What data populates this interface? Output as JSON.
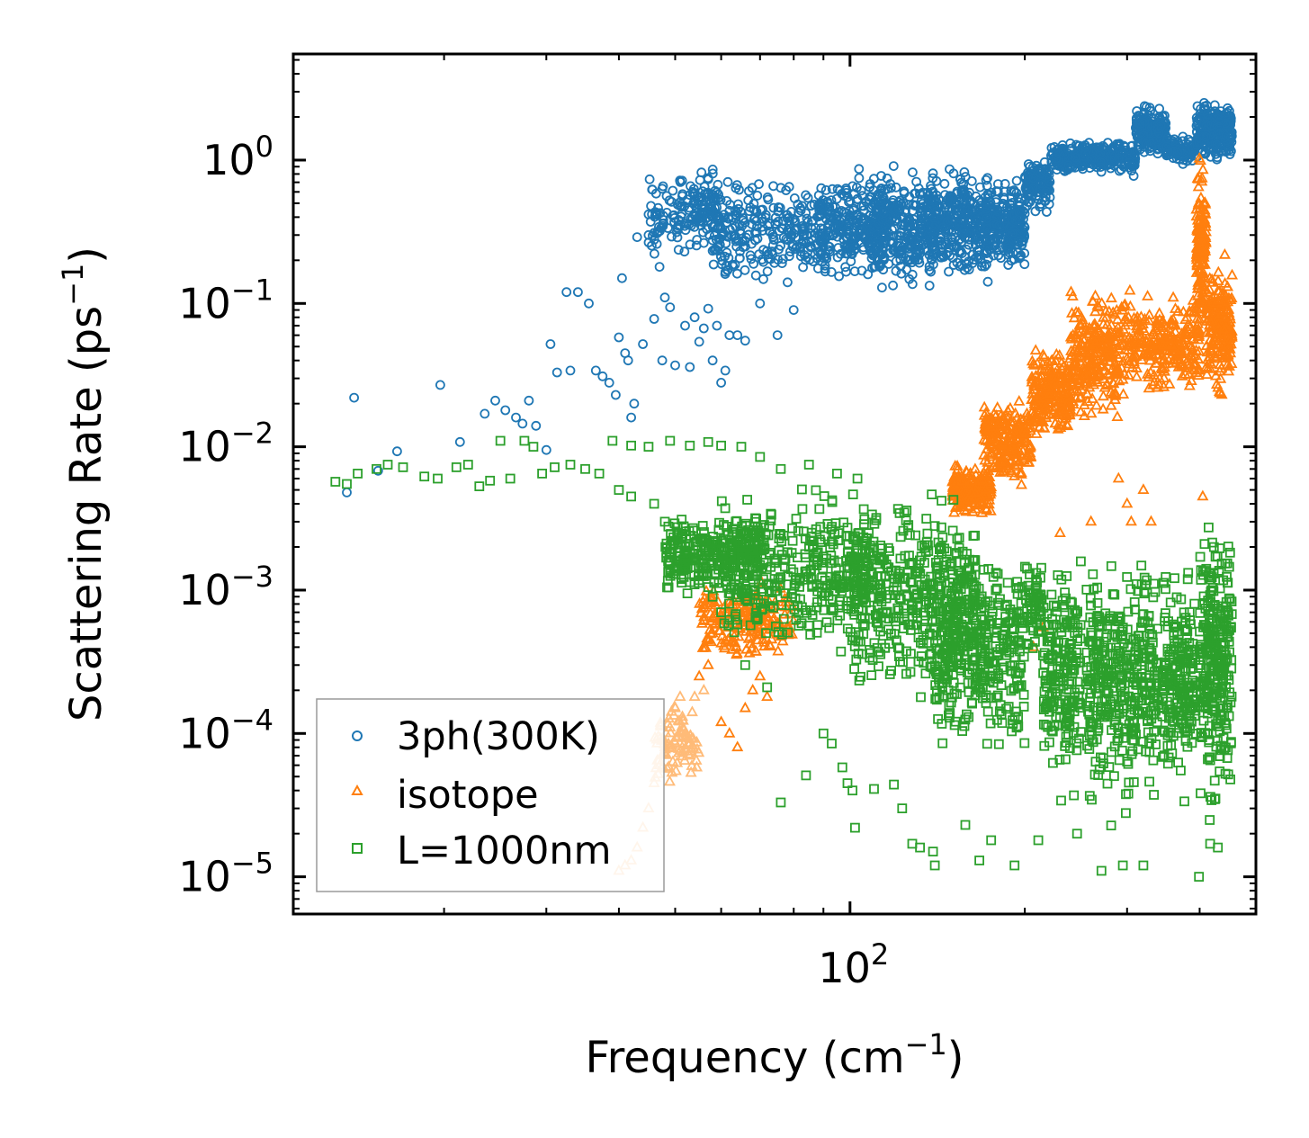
{
  "chart_data": {
    "type": "scatter",
    "xscale": "log",
    "yscale": "log",
    "xlim": [
      11,
      500
    ],
    "ylim": [
      5.5e-06,
      5.5
    ],
    "xlabel": {
      "main": "Frequency (cm",
      "sup": "−1",
      "tail": ")"
    },
    "ylabel": {
      "main": "Scattering Rate (ps",
      "sup": "−1",
      "tail": ")"
    },
    "x_ticks": [
      {
        "value": 100,
        "base": "10",
        "exp": "2"
      }
    ],
    "y_ticks": [
      {
        "value": 1e-05,
        "base": "10",
        "exp": "−5"
      },
      {
        "value": 0.0001,
        "base": "10",
        "exp": "−4"
      },
      {
        "value": 0.001,
        "base": "10",
        "exp": "−3"
      },
      {
        "value": 0.01,
        "base": "10",
        "exp": "−2"
      },
      {
        "value": 0.1,
        "base": "10",
        "exp": "−1"
      },
      {
        "value": 1,
        "base": "10",
        "exp": "0"
      }
    ],
    "legend_position": "lower-left",
    "series": [
      {
        "name": "3ph(300K)",
        "marker": "circle",
        "color": "#1f77b4",
        "points": [
          [
            13.6,
            0.0048
          ],
          [
            14.0,
            0.022
          ],
          [
            15.4,
            0.0068
          ],
          [
            16.6,
            0.0093
          ],
          [
            19.7,
            0.027
          ],
          [
            21.3,
            0.0108
          ],
          [
            23.5,
            0.017
          ],
          [
            24.5,
            0.021
          ],
          [
            25.5,
            0.018
          ],
          [
            26.6,
            0.016
          ],
          [
            27.3,
            0.0145
          ],
          [
            28.0,
            0.021
          ],
          [
            28.8,
            0.014
          ],
          [
            30.0,
            0.0095
          ],
          [
            30.5,
            0.052
          ],
          [
            31.3,
            0.033
          ],
          [
            32.5,
            0.12
          ],
          [
            33.0,
            0.034
          ],
          [
            34.0,
            0.12
          ],
          [
            35.5,
            0.1
          ],
          [
            36.5,
            0.034
          ],
          [
            37.5,
            0.031
          ],
          [
            38.5,
            0.028
          ],
          [
            39.5,
            0.023
          ],
          [
            40.0,
            0.058
          ],
          [
            40.5,
            0.15
          ],
          [
            41.0,
            0.045
          ],
          [
            41.5,
            0.04
          ],
          [
            42.0,
            0.016
          ],
          [
            42.5,
            0.02
          ],
          [
            43.0,
            0.29
          ],
          [
            44.0,
            0.052
          ],
          [
            45.0,
            0.3
          ],
          [
            46.0,
            0.078
          ],
          [
            46.5,
            0.26
          ],
          [
            47.0,
            0.18
          ],
          [
            47.5,
            0.04
          ],
          [
            48.0,
            0.11
          ],
          [
            49.0,
            0.094
          ],
          [
            50.0,
            0.037
          ],
          [
            51.0,
            0.35
          ],
          [
            52.0,
            0.07
          ],
          [
            53.0,
            0.036
          ],
          [
            54.0,
            0.08
          ],
          [
            55.0,
            0.054
          ],
          [
            56.0,
            0.067
          ],
          [
            57.0,
            0.092
          ],
          [
            58.0,
            0.04
          ],
          [
            59.0,
            0.07
          ],
          [
            60.0,
            0.028
          ],
          [
            61.0,
            0.034
          ],
          [
            62.0,
            0.06
          ],
          [
            64.0,
            0.06
          ],
          [
            66.0,
            0.055
          ],
          [
            70.0,
            0.1
          ],
          [
            75.0,
            0.06
          ],
          [
            80.0,
            0.09
          ]
        ],
        "bands": [
          {
            "x": [
              45,
              60
            ],
            "y": [
              0.2,
              0.95
            ],
            "n": 170
          },
          {
            "x": [
              58,
              90
            ],
            "y": [
              0.12,
              0.8
            ],
            "n": 260
          },
          {
            "x": [
              88,
              115
            ],
            "y": [
              0.12,
              0.95
            ],
            "n": 260
          },
          {
            "x": [
              108,
              140
            ],
            "y": [
              0.11,
              1.05
            ],
            "n": 300
          },
          {
            "x": [
              138,
              175
            ],
            "y": [
              0.13,
              1.0
            ],
            "n": 320
          },
          {
            "x": [
              170,
              200
            ],
            "y": [
              0.15,
              0.85
            ],
            "n": 240
          },
          {
            "x": [
              200,
              222
            ],
            "y": [
              0.4,
              1.15
            ],
            "n": 120
          },
          {
            "x": [
              222,
              310
            ],
            "y": [
              0.75,
              1.45
            ],
            "n": 280
          },
          {
            "x": [
              310,
              350
            ],
            "y": [
              1.0,
              2.6
            ],
            "n": 200
          },
          {
            "x": [
              350,
              390
            ],
            "y": [
              0.9,
              1.5
            ],
            "n": 90
          },
          {
            "x": [
              395,
              455
            ],
            "y": [
              0.9,
              2.8
            ],
            "n": 260
          }
        ]
      },
      {
        "name": "isotope",
        "marker": "triangle",
        "color": "#ff7f0e",
        "lowcolor": "#ffbb78",
        "points": [
          [
            40.0,
            1.1e-05
          ],
          [
            41.0,
            1.2e-05
          ],
          [
            42.0,
            1.3e-05
          ],
          [
            43.0,
            1.6e-05
          ],
          [
            44.0,
            2.2e-05
          ],
          [
            45.0,
            3e-05
          ],
          [
            46.0,
            4.5e-05
          ],
          [
            47.0,
            6e-05
          ],
          [
            48.0,
            8e-05
          ],
          [
            49.0,
            0.00011
          ],
          [
            50.0,
            0.00015
          ],
          [
            51.0,
            0.00018
          ],
          [
            52.0,
            0.0001
          ],
          [
            53.0,
            7e-05
          ],
          [
            54.0,
            0.00018
          ],
          [
            55.0,
            0.00025
          ],
          [
            56.0,
            0.0002
          ],
          [
            57.0,
            0.0003
          ],
          [
            58.0,
            0.0005
          ],
          [
            60.0,
            0.00012
          ],
          [
            62.0,
            0.0001
          ],
          [
            64.0,
            8e-05
          ],
          [
            66.0,
            0.00015
          ],
          [
            68.0,
            0.0002
          ],
          [
            70.0,
            0.00025
          ],
          [
            72.0,
            0.00018
          ],
          [
            290.0,
            0.006
          ],
          [
            300.0,
            0.004
          ],
          [
            305.0,
            0.003
          ],
          [
            320.0,
            0.005
          ],
          [
            330.0,
            0.003
          ],
          [
            405.0,
            0.0045
          ],
          [
            207.0,
            0.0004
          ],
          [
            215.0,
            0.00055
          ],
          [
            230.0,
            0.0025
          ],
          [
            260.0,
            0.003
          ]
        ],
        "bands": [
          {
            "x": [
              46,
              55
            ],
            "y": [
              4e-05,
              0.00018
            ],
            "n": 90
          },
          {
            "x": [
              55,
              80
            ],
            "y": [
              0.0003,
              0.0013
            ],
            "n": 200
          },
          {
            "x": [
              150,
              175
            ],
            "y": [
              0.003,
              0.008
            ],
            "n": 200
          },
          {
            "x": [
              170,
              205
            ],
            "y": [
              0.005,
              0.025
            ],
            "n": 220
          },
          {
            "x": [
              205,
              240
            ],
            "y": [
              0.01,
              0.055
            ],
            "n": 220
          },
          {
            "x": [
              240,
              290
            ],
            "y": [
              0.012,
              0.15
            ],
            "n": 260
          },
          {
            "x": [
              290,
              400
            ],
            "y": [
              0.02,
              0.13
            ],
            "n": 280
          },
          {
            "x": [
              395,
              410
            ],
            "y": [
              0.05,
              1.2
            ],
            "n": 150
          },
          {
            "x": [
              410,
              455
            ],
            "y": [
              0.02,
              0.25
            ],
            "n": 200
          }
        ]
      },
      {
        "name": "L=1000nm",
        "marker": "square",
        "color": "#2ca02c",
        "points": [
          [
            13.0,
            0.0057
          ],
          [
            13.6,
            0.0055
          ],
          [
            14.2,
            0.0065
          ],
          [
            15.3,
            0.007
          ],
          [
            16.0,
            0.0075
          ],
          [
            17.0,
            0.0072
          ],
          [
            18.5,
            0.0062
          ],
          [
            19.5,
            0.006
          ],
          [
            21.0,
            0.0072
          ],
          [
            22.0,
            0.0075
          ],
          [
            23.0,
            0.0053
          ],
          [
            24.0,
            0.0058
          ],
          [
            25.0,
            0.011
          ],
          [
            26.0,
            0.006
          ],
          [
            27.5,
            0.011
          ],
          [
            28.5,
            0.01
          ],
          [
            29.5,
            0.0065
          ],
          [
            31.0,
            0.0072
          ],
          [
            33.0,
            0.0075
          ],
          [
            35.0,
            0.007
          ],
          [
            37.0,
            0.0065
          ],
          [
            39.0,
            0.011
          ],
          [
            42.0,
            0.0102
          ],
          [
            45.0,
            0.01
          ],
          [
            49.0,
            0.011
          ],
          [
            53.0,
            0.0102
          ],
          [
            57.0,
            0.0108
          ],
          [
            60.0,
            0.0102
          ],
          [
            65.0,
            0.01
          ],
          [
            70.0,
            0.0085
          ],
          [
            76.0,
            0.007
          ],
          [
            85.0,
            0.0075
          ],
          [
            95.0,
            0.0065
          ],
          [
            103.0,
            0.006
          ],
          [
            40.0,
            0.005
          ],
          [
            42.0,
            0.0045
          ],
          [
            46.0,
            0.004
          ],
          [
            48.0,
            0.003
          ],
          [
            50.0,
            0.0022
          ],
          [
            52.0,
            0.002
          ],
          [
            54.0,
            0.0018
          ],
          [
            56.0,
            0.00125
          ],
          [
            57.0,
            0.00105
          ],
          [
            58.0,
            0.0009
          ],
          [
            60.0,
            0.0007
          ],
          [
            62.0,
            0.00062
          ],
          [
            66.0,
            0.0003
          ],
          [
            72.0,
            0.00021
          ],
          [
            90.0,
            0.0001
          ],
          [
            93.0,
            8.5e-05
          ],
          [
            97.0,
            5.8e-05
          ],
          [
            99.0,
            4.5e-05
          ],
          [
            101.0,
            4e-05
          ],
          [
            110.0,
            4.1e-05
          ],
          [
            119.0,
            4.4e-05
          ],
          [
            123.0,
            3e-05
          ],
          [
            128.0,
            1.7e-05
          ],
          [
            132.0,
            1.6e-05
          ],
          [
            139.0,
            1.5e-05
          ],
          [
            140.0,
            1.2e-05
          ],
          [
            158.0,
            2.3e-05
          ],
          [
            167.0,
            1.3e-05
          ],
          [
            175.0,
            1.8e-05
          ],
          [
            192.0,
            1.2e-05
          ],
          [
            211.0,
            1.8e-05
          ],
          [
            231.0,
            3.4e-05
          ],
          [
            243.0,
            3.7e-05
          ],
          [
            246.0,
            2e-05
          ],
          [
            271.0,
            1.1e-05
          ],
          [
            295.0,
            1.2e-05
          ],
          [
            320.0,
            1.2e-05
          ],
          [
            399.0,
            1e-05
          ],
          [
            417.0,
            1.7e-05
          ],
          [
            430.0,
            1.6e-05
          ],
          [
            102.0,
            2.2e-05
          ],
          [
            76.0,
            3.3e-05
          ],
          [
            84.0,
            5.1e-05
          ]
        ],
        "bands": [
          {
            "x": [
              48,
              70
            ],
            "y": [
              0.0008,
              0.004
            ],
            "n": 260
          },
          {
            "x": [
              60,
              110
            ],
            "y": [
              0.0003,
              0.006
            ],
            "n": 380
          },
          {
            "x": [
              100,
              165
            ],
            "y": [
              0.00015,
              0.006
            ],
            "n": 420
          },
          {
            "x": [
              140,
              200
            ],
            "y": [
              5e-05,
              0.003
            ],
            "n": 380
          },
          {
            "x": [
              200,
              214
            ],
            "y": [
              0.0003,
              0.002
            ],
            "n": 60
          },
          {
            "x": [
              215,
              250
            ],
            "y": [
              4e-05,
              0.002
            ],
            "n": 200
          },
          {
            "x": [
              255,
              310
            ],
            "y": [
              2e-05,
              0.0025
            ],
            "n": 260
          },
          {
            "x": [
              310,
              340
            ],
            "y": [
              3e-05,
              0.0025
            ],
            "n": 120
          },
          {
            "x": [
              345,
              395
            ],
            "y": [
              3e-05,
              0.002
            ],
            "n": 200
          },
          {
            "x": [
              400,
              455
            ],
            "y": [
              2e-05,
              0.005
            ],
            "n": 300
          }
        ]
      }
    ]
  }
}
